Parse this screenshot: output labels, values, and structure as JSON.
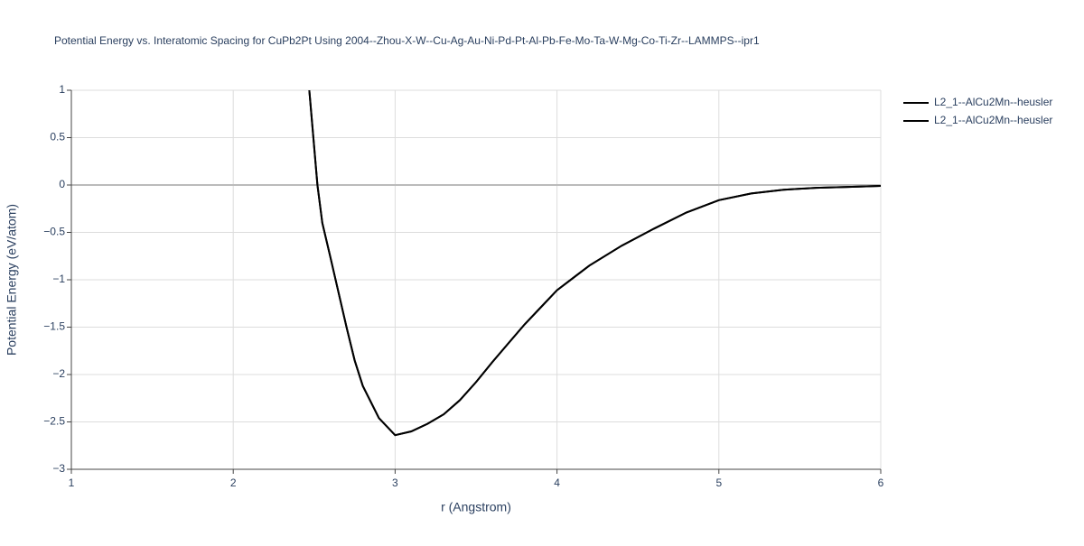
{
  "chart_data": {
    "type": "line",
    "title": "Potential Energy vs. Interatomic Spacing for CuPb2Pt Using 2004--Zhou-X-W--Cu-Ag-Au-Ni-Pd-Pt-Al-Pb-Fe-Mo-Ta-W-Mg-Co-Ti-Zr--LAMMPS--ipr1",
    "x_label": "r (Angstrom)",
    "y_label": "Potential Energy (eV/atom)",
    "x": [
      2.47,
      2.52,
      2.55,
      2.6,
      2.7,
      2.75,
      2.8,
      2.9,
      3.0,
      3.1,
      3.2,
      3.3,
      3.4,
      3.5,
      3.6,
      3.7,
      3.8,
      3.9,
      4.0,
      4.2,
      4.4,
      4.6,
      4.8,
      5.0,
      5.2,
      5.4,
      5.6,
      5.8,
      6.0
    ],
    "series": [
      {
        "name": "L2_1--AlCu2Mn--heusler",
        "color": "#000000",
        "values": [
          1.0,
          0.0,
          -0.4,
          -0.76,
          -1.5,
          -1.85,
          -2.12,
          -2.46,
          -2.64,
          -2.6,
          -2.52,
          -2.42,
          -2.27,
          -2.08,
          -1.87,
          -1.67,
          -1.47,
          -1.29,
          -1.11,
          -0.85,
          -0.64,
          -0.46,
          -0.29,
          -0.16,
          -0.09,
          -0.05,
          -0.03,
          -0.02,
          -0.01
        ]
      },
      {
        "name": "L2_1--AlCu2Mn--heusler",
        "color": "#000000",
        "values": [
          1.0,
          0.0,
          -0.4,
          -0.76,
          -1.5,
          -1.85,
          -2.12,
          -2.46,
          -2.64,
          -2.6,
          -2.52,
          -2.42,
          -2.27,
          -2.08,
          -1.87,
          -1.67,
          -1.47,
          -1.29,
          -1.11,
          -0.85,
          -0.64,
          -0.46,
          -0.29,
          -0.16,
          -0.09,
          -0.05,
          -0.03,
          -0.02,
          -0.01
        ]
      }
    ],
    "xlim": [
      1,
      6
    ],
    "xticks": [
      1,
      2,
      3,
      4,
      5,
      6
    ],
    "ylim": [
      -3,
      1
    ],
    "yticks": [
      {
        "value": -3,
        "label": "−3"
      },
      {
        "value": -2.5,
        "label": "−2.5"
      },
      {
        "value": -2,
        "label": "−2"
      },
      {
        "value": -1.5,
        "label": "−1.5"
      },
      {
        "value": -1,
        "label": "−1"
      },
      {
        "value": -0.5,
        "label": "−0.5"
      },
      0,
      0.5,
      1
    ],
    "grid": true,
    "legend": "right"
  }
}
